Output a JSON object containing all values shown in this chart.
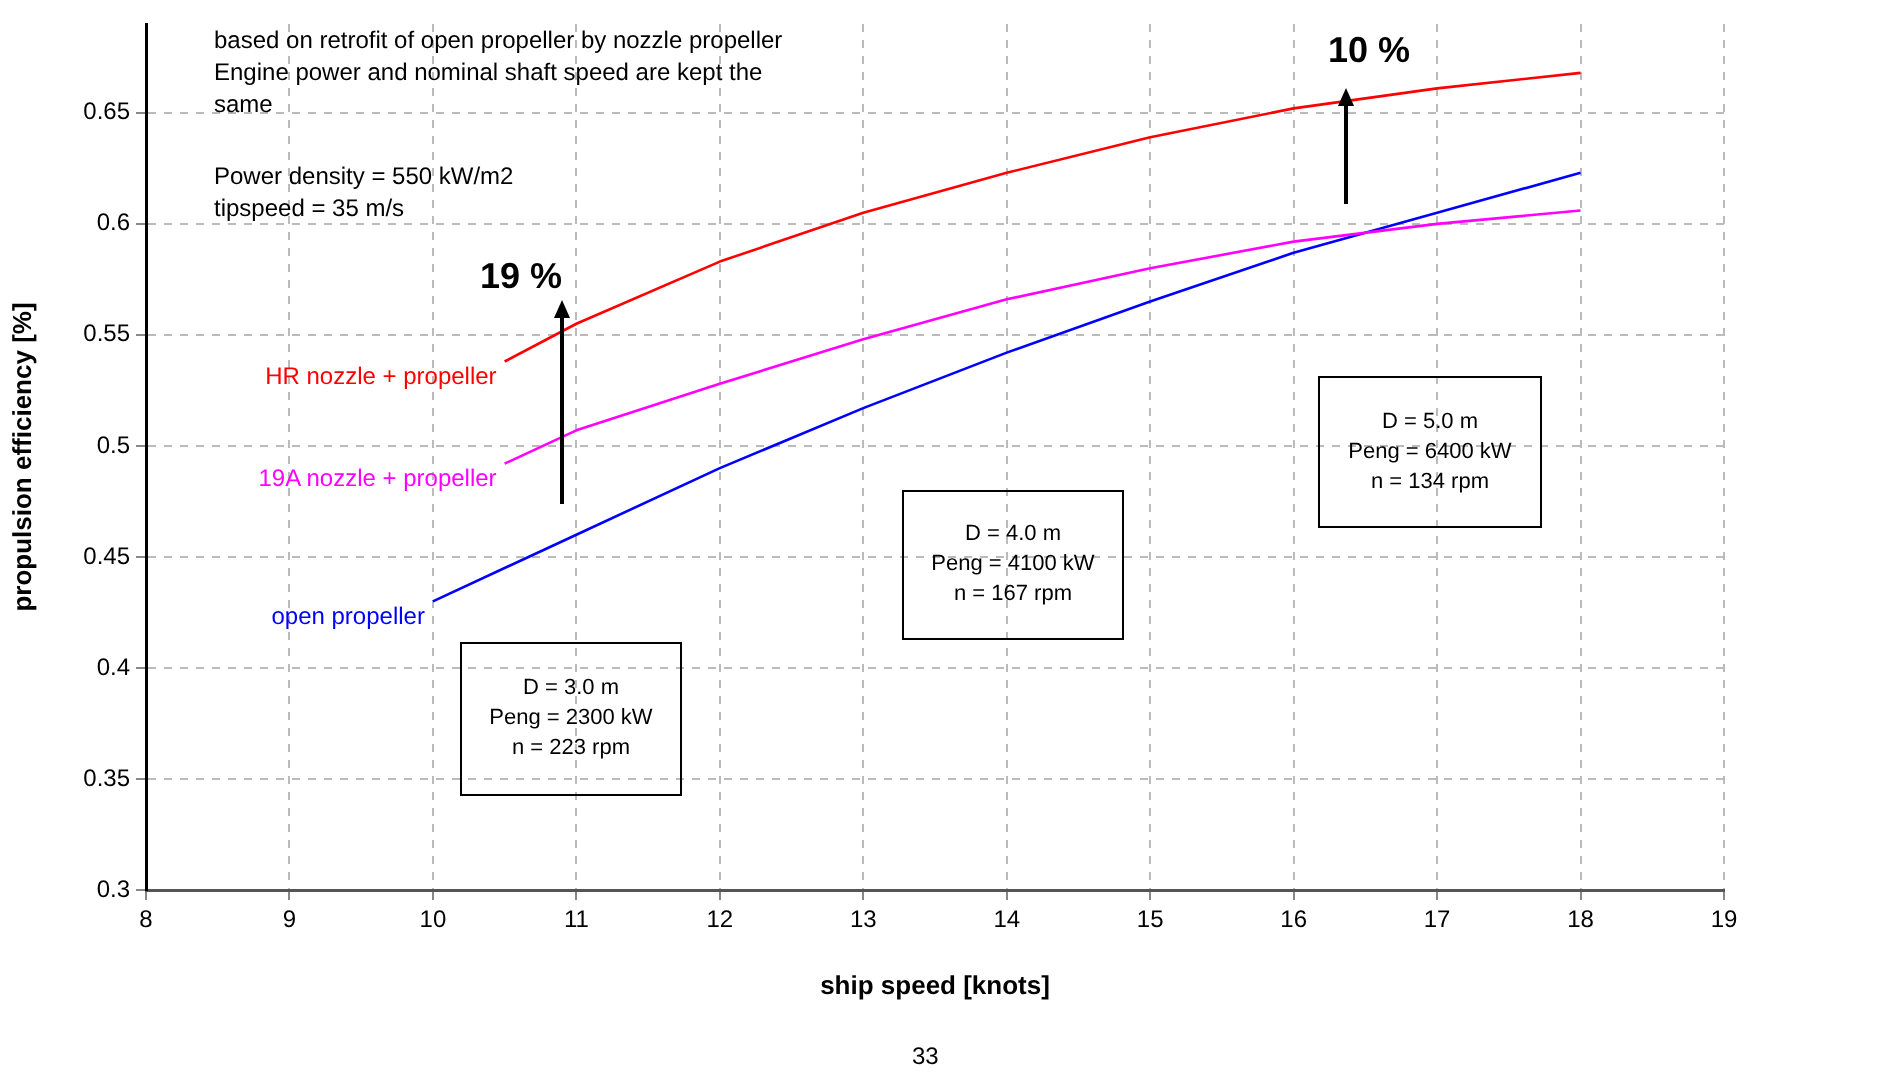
{
  "chart_data": {
    "type": "line",
    "xlabel": "ship speed [knots]",
    "ylabel": "propulsion efficiency [%]",
    "xlim": [
      8,
      19
    ],
    "xticks": [
      8,
      9,
      10,
      11,
      12,
      13,
      14,
      15,
      16,
      17,
      18,
      19
    ],
    "ylim": [
      0.3,
      0.69
    ],
    "yticks": [
      0.3,
      0.35,
      0.4,
      0.45,
      0.5,
      0.55,
      0.6,
      0.65
    ],
    "grid": true,
    "legend": false,
    "marker": "none",
    "line_style": "solid",
    "series": [
      {
        "name": "HR nozzle + propeller",
        "color": "#ff0000",
        "x": [
          10.5,
          11,
          12,
          13,
          14,
          15,
          16,
          17,
          18
        ],
        "values": [
          0.538,
          0.555,
          0.583,
          0.605,
          0.623,
          0.639,
          0.652,
          0.661,
          0.668
        ]
      },
      {
        "name": "19A nozzle + propeller",
        "color": "#ff00ff",
        "x": [
          10.5,
          11,
          12,
          13,
          14,
          15,
          16,
          17,
          18
        ],
        "values": [
          0.492,
          0.507,
          0.528,
          0.548,
          0.566,
          0.58,
          0.592,
          0.6,
          0.606
        ]
      },
      {
        "name": "open propeller",
        "color": "#0000ff",
        "x": [
          10,
          11,
          12,
          13,
          14,
          15,
          16,
          17,
          18
        ],
        "values": [
          0.43,
          0.46,
          0.49,
          0.517,
          0.542,
          0.565,
          0.587,
          0.605,
          0.623
        ]
      }
    ],
    "annotations": [
      "based on retrofit of open propeller by nozzle propeller",
      "Engine power and nominal shaft speed are kept the same",
      "Power density = 550 kW/m2",
      "tipspeed = 35 m/s",
      "D = 3.0 m\nPeng = 2300 kW\nn = 223 rpm",
      "D = 4.0 m\nPeng = 4100 kW\nn = 167 rpm",
      "D = 5.0 m\nPeng = 6400 kW\nn = 134 rpm",
      "19 %",
      "10 %",
      "33"
    ]
  }
}
